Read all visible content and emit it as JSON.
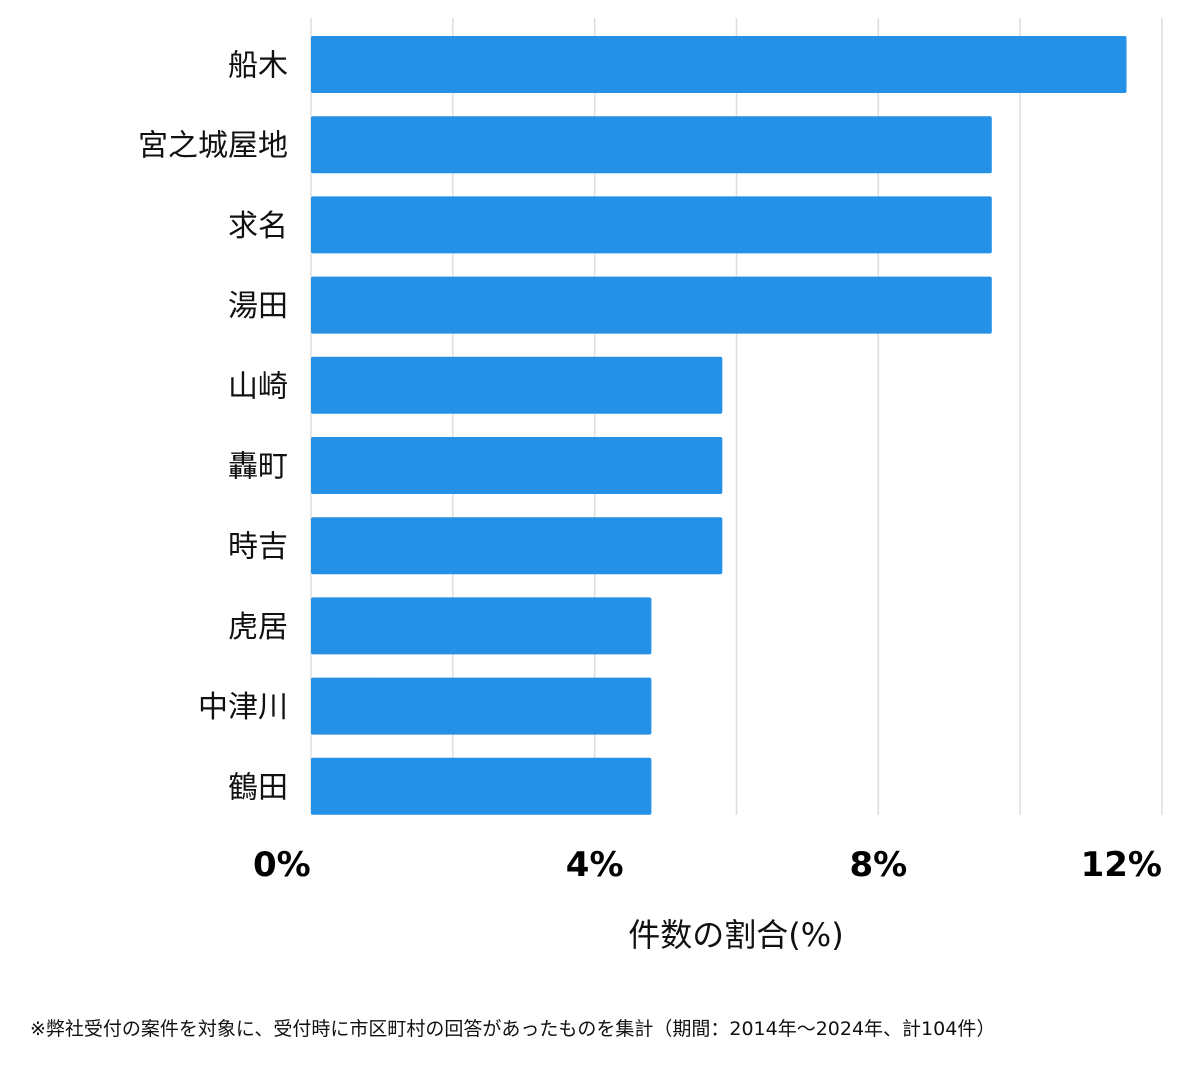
{
  "chart_data": {
    "type": "bar",
    "orientation": "horizontal",
    "categories": [
      "船木",
      "宮之城屋地",
      "求名",
      "湯田",
      "山崎",
      "轟町",
      "時吉",
      "虎居",
      "中津川",
      "鶴田"
    ],
    "values": [
      11.5,
      9.6,
      9.6,
      9.6,
      5.8,
      5.8,
      5.8,
      4.8,
      4.8,
      4.8
    ],
    "xlim": [
      0,
      12
    ],
    "grid_step": 2,
    "xticks": [
      0,
      4,
      8,
      12
    ],
    "xtick_labels": [
      "0%",
      "4%",
      "8%",
      "12%"
    ],
    "xlabel": "件数の割合(%)",
    "ylabel": "",
    "grid": true,
    "bar_color": "#2491e6",
    "grid_color": "#dddddd"
  },
  "footnote": "※弊社受付の案件を対象に、受付時に市区町村の回答があったものを集計（期間：2014年～2024年、計104件）"
}
